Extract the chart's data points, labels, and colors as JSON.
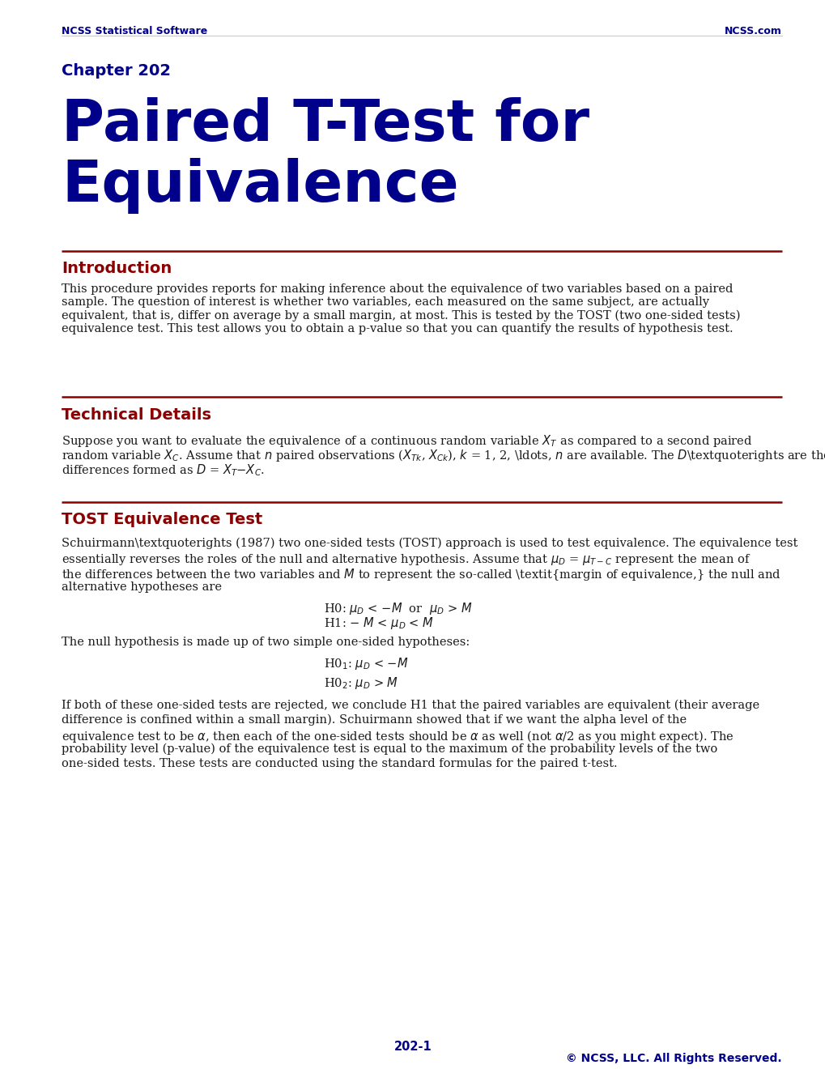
{
  "bg_color": "#ffffff",
  "header_left": "NCSS Statistical Software",
  "header_right": "NCSS.com",
  "header_color": "#00008B",
  "chapter_label": "Chapter 202",
  "chapter_color": "#00008B",
  "main_title_line1": "Paired T-Test for",
  "main_title_line2": "Equivalence",
  "main_title_color": "#00008B",
  "section_line_color": "#8B0000",
  "section1_title": "Introduction",
  "section1_color": "#8B0000",
  "section1_body": "This procedure provides reports for making inference about the equivalence of two variables based on a paired\nsample. The question of interest is whether two variables, each measured on the same subject, are actually\nequivalent, that is, differ on average by a small margin, at most. This is tested by the TOST (two one-sided tests)\nequivalence test. This test allows you to obtain a p-value so that you can quantify the results of hypothesis test.",
  "section2_title": "Technical Details",
  "section2_color": "#8B0000",
  "section3_title": "TOST Equivalence Test",
  "section3_color": "#8B0000",
  "footer_page": "202-1",
  "footer_copy": "© NCSS, LLC. All Rights Reserved.",
  "footer_color": "#00008B",
  "body_color": "#1a1a1a",
  "body_fontsize": 10.5,
  "section_fontsize": 14,
  "chapter_fontsize": 14,
  "main_title_fontsize": 52,
  "header_fontsize": 9
}
